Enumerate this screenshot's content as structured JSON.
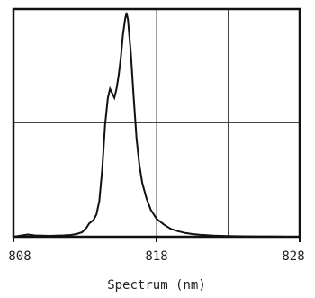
{
  "chart_data": {
    "type": "line",
    "title": "",
    "xlabel": "Spectrum (nm)",
    "ylabel": "",
    "xlim": [
      808,
      828
    ],
    "ylim": [
      0,
      1
    ],
    "grid": true,
    "x_ticks": [
      {
        "value": 808,
        "label": "808"
      },
      {
        "value": 818,
        "label": "818"
      },
      {
        "value": 828,
        "label": "828"
      }
    ],
    "x_gridlines": [
      813,
      818,
      823
    ],
    "y_gridlines": [
      0.5
    ],
    "series": [
      {
        "name": "",
        "x": [
          808.0,
          808.5,
          809.0,
          809.5,
          810.0,
          810.5,
          811.0,
          811.5,
          812.0,
          812.4,
          812.8,
          813.1,
          813.3,
          813.6,
          813.8,
          814.0,
          814.2,
          814.4,
          814.6,
          814.75,
          814.9,
          815.05,
          815.2,
          815.35,
          815.5,
          815.65,
          815.8,
          815.9,
          816.0,
          816.2,
          816.4,
          816.6,
          816.8,
          817.0,
          817.3,
          817.6,
          818.0,
          818.5,
          819.0,
          819.5,
          820.0,
          820.5,
          821.0,
          822.0,
          823.0,
          824.0,
          825.0,
          826.0,
          827.0,
          828.0
        ],
        "values": [
          0.0,
          0.005,
          0.01,
          0.006,
          0.005,
          0.004,
          0.005,
          0.006,
          0.008,
          0.012,
          0.02,
          0.04,
          0.06,
          0.075,
          0.1,
          0.16,
          0.3,
          0.5,
          0.62,
          0.66,
          0.64,
          0.62,
          0.66,
          0.72,
          0.8,
          0.9,
          0.97,
          1.0,
          0.97,
          0.82,
          0.62,
          0.44,
          0.32,
          0.24,
          0.17,
          0.12,
          0.08,
          0.055,
          0.035,
          0.025,
          0.017,
          0.012,
          0.009,
          0.005,
          0.003,
          0.002,
          0.001,
          0.001,
          0.0,
          0.0
        ]
      }
    ]
  }
}
